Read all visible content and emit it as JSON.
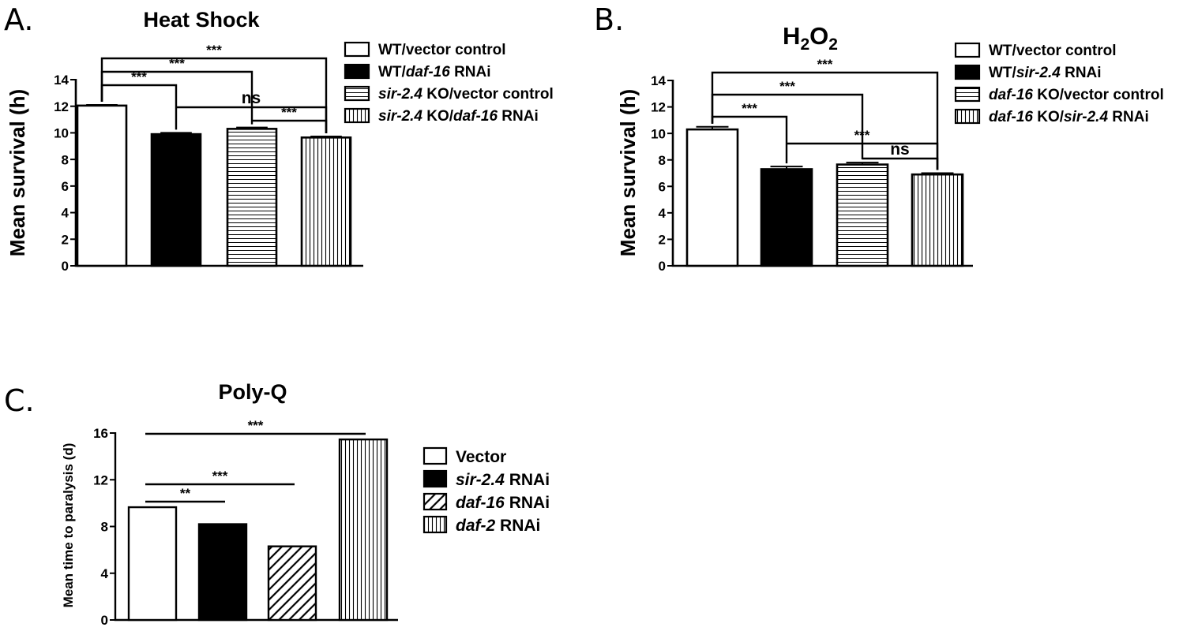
{
  "chart_data": [
    {
      "type": "bar",
      "panel": "A.",
      "title": "Heat Shock",
      "ylabel": "Mean survival (h)",
      "xlabel": "",
      "ylim": [
        0,
        14
      ],
      "yticks": [
        0,
        2,
        4,
        6,
        8,
        10,
        12,
        14
      ],
      "categories": [
        "WT/vector control",
        "WT/daf-16 RNAi",
        "sir-2.4 KO/vector control",
        "sir-2.4 KO/daf-16 RNAi"
      ],
      "values": [
        12.05,
        9.9,
        10.3,
        9.65
      ],
      "errors": [
        0.05,
        0.1,
        0.1,
        0.08
      ],
      "patterns": [
        "open",
        "solid",
        "horizontal",
        "vertical"
      ],
      "legend": [
        [
          {
            "t": "WT/vector control",
            "i": false
          }
        ],
        [
          {
            "t": "WT/",
            "i": false
          },
          {
            "t": "daf-16",
            "i": true
          },
          {
            "t": " RNAi",
            "i": false
          }
        ],
        [
          {
            "t": "sir-2.4",
            "i": true
          },
          {
            "t": " KO/vector control",
            "i": false
          }
        ],
        [
          {
            "t": "sir-2.4",
            "i": true
          },
          {
            "t": " KO/",
            "i": false
          },
          {
            "t": "daf-16",
            "i": true
          },
          {
            "t": " RNAi",
            "i": false
          }
        ]
      ],
      "legend_position": "right",
      "grid": false,
      "annotations": [
        {
          "from": 0,
          "to": 1,
          "label": "***"
        },
        {
          "from": 0,
          "to": 2,
          "label": "***"
        },
        {
          "from": 0,
          "to": 3,
          "label": "***"
        },
        {
          "from": 1,
          "to": 3,
          "label": "ns"
        },
        {
          "from": 2,
          "to": 3,
          "label": "***"
        }
      ]
    },
    {
      "type": "bar",
      "panel": "B.",
      "title_main": "H",
      "title_sub1": "2",
      "title_mid": "O",
      "title_sub2": "2",
      "ylabel": "Mean survival (h)",
      "xlabel": "",
      "ylim": [
        0,
        14
      ],
      "yticks": [
        0,
        2,
        4,
        6,
        8,
        10,
        12,
        14
      ],
      "categories": [
        "WT/vector control",
        "WT/sir-2.4 RNAi",
        "daf-16 KO/vector control",
        "daf-16 KO/sir-2.4 RNAi"
      ],
      "values": [
        10.3,
        7.3,
        7.65,
        6.9
      ],
      "errors": [
        0.2,
        0.2,
        0.15,
        0.1
      ],
      "patterns": [
        "open",
        "solid",
        "horizontal",
        "vertical"
      ],
      "legend": [
        [
          {
            "t": "WT/vector control",
            "i": false
          }
        ],
        [
          {
            "t": "WT/",
            "i": false
          },
          {
            "t": "sir-2.4",
            "i": true
          },
          {
            "t": " RNAi",
            "i": false
          }
        ],
        [
          {
            "t": "daf-16",
            "i": true
          },
          {
            "t": " KO/vector control",
            "i": false
          }
        ],
        [
          {
            "t": "daf-16",
            "i": true
          },
          {
            "t": " KO/",
            "i": false
          },
          {
            "t": "sir-2.4",
            "i": true
          },
          {
            "t": " RNAi",
            "i": false
          }
        ]
      ],
      "legend_position": "right",
      "grid": false,
      "annotations": [
        {
          "from": 0,
          "to": 1,
          "label": "***"
        },
        {
          "from": 0,
          "to": 2,
          "label": "***"
        },
        {
          "from": 0,
          "to": 3,
          "label": "***"
        },
        {
          "from": 1,
          "to": 3,
          "label": "***"
        },
        {
          "from": 2,
          "to": 3,
          "label": "ns"
        }
      ]
    },
    {
      "type": "bar",
      "panel": "C.",
      "title": "Poly-Q",
      "ylabel": "Mean time to paralysis (d)",
      "xlabel": "",
      "ylim": [
        0,
        16
      ],
      "yticks": [
        0,
        4,
        8,
        12,
        16
      ],
      "categories": [
        "Vector",
        "sir-2.4 RNAi",
        "daf-16 RNAi",
        "daf-2 RNAi"
      ],
      "values": [
        9.65,
        8.2,
        6.3,
        15.45
      ],
      "patterns": [
        "open",
        "solid",
        "diagonal",
        "vertical"
      ],
      "legend": [
        [
          {
            "t": "Vector",
            "i": false
          }
        ],
        [
          {
            "t": "sir-2.4",
            "i": true
          },
          {
            "t": " RNAi",
            "i": false
          }
        ],
        [
          {
            "t": "daf-16",
            "i": true
          },
          {
            "t": " RNAi",
            "i": false
          }
        ],
        [
          {
            "t": "daf-2",
            "i": true
          },
          {
            "t": " RNAi",
            "i": false
          }
        ]
      ],
      "legend_position": "right",
      "grid": false,
      "annotations": [
        {
          "from": 0,
          "to": 1,
          "label": "**"
        },
        {
          "from": 0,
          "to": 2,
          "label": "***"
        },
        {
          "from": 0,
          "to": 3,
          "label": "***"
        }
      ]
    }
  ]
}
